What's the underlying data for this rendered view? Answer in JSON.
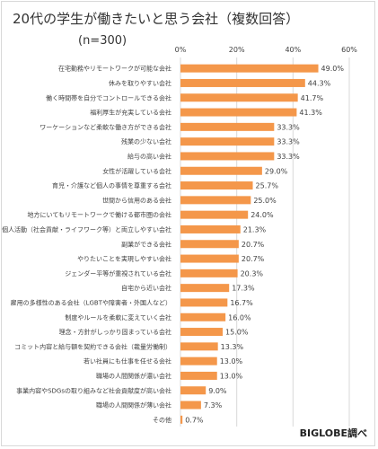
{
  "title": "20代の学生が働きたいと思う会社（複数回答）",
  "sample": "(n=300)",
  "credit": "BIGLOBE調べ",
  "colors": {
    "bar": "#F4974A",
    "grid": "#d9d9d9",
    "text": "#404040"
  },
  "chart_data": {
    "type": "bar",
    "orientation": "horizontal",
    "xlim": [
      0,
      60
    ],
    "ticks": [
      "0%",
      "20%",
      "40%",
      "60%"
    ],
    "tick_values": [
      0,
      20,
      40,
      60
    ],
    "grid": true,
    "categories": [
      "在宅勤務やリモートワークが可能な会社",
      "休みを取りやすい会社",
      "働く時間帯を自分でコントロールできる会社",
      "福利厚生が充実している会社",
      "ワーケーションなど柔軟な働き方ができる会社",
      "残業の少ない会社",
      "給与の高い会社",
      "女性が活躍している会社",
      "育児・介護など個人の事情を尊重する会社",
      "世間から信用のある会社",
      "地方にいてもリモートワークで働ける都市圏の会社",
      "個人活動（社会貢献・ライフワーク等）と両立しやすい会社",
      "副業ができる会社",
      "やりたいことを実現しやすい会社",
      "ジェンダー平等が重視されている会社",
      "自宅から近い会社",
      "雇用の多様性のある会社（LGBTや障害者・外国人など）",
      "制度やルールを柔軟に変えていく会社",
      "理念・方針がしっかり固まっている会社",
      "コミット内容と給与額を契約できる会社（裁量労働制）",
      "若い社員にも仕事を任せる会社",
      "職場の人間関係が濃い会社",
      "事業内容やSDGsの取り組みなど社会貢献度が高い会社",
      "職場の人間関係が薄い会社",
      "その他"
    ],
    "values": [
      49.0,
      44.3,
      41.7,
      41.3,
      33.3,
      33.3,
      33.3,
      29.0,
      25.7,
      25.0,
      24.0,
      21.3,
      20.7,
      20.7,
      20.3,
      17.3,
      16.7,
      16.0,
      15.0,
      13.3,
      13.0,
      13.0,
      9.0,
      7.3,
      0.7
    ],
    "value_labels": [
      "49.0%",
      "44.3%",
      "41.7%",
      "41.3%",
      "33.3%",
      "33.3%",
      "33.3%",
      "29.0%",
      "25.7%",
      "25.0%",
      "24.0%",
      "21.3%",
      "20.7%",
      "20.7%",
      "20.3%",
      "17.3%",
      "16.7%",
      "16.0%",
      "15.0%",
      "13.3%",
      "13.0%",
      "13.0%",
      "9.0%",
      "7.3%",
      "0.7%"
    ]
  }
}
